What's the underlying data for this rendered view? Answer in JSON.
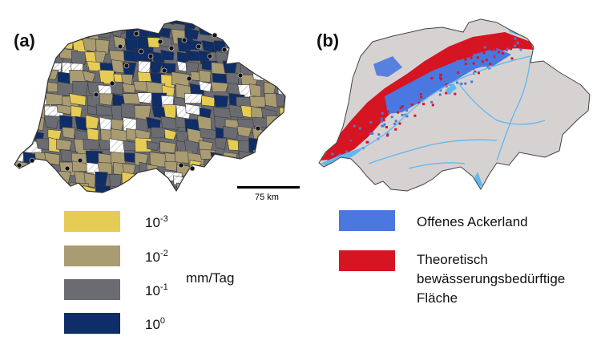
{
  "panel_a": {
    "label": "(a)",
    "scale_label": "75 km",
    "legend_unit": "mm/Tag",
    "legend": [
      {
        "base": "10",
        "exp": "-3",
        "color": "#e6cc55"
      },
      {
        "base": "10",
        "exp": "-2",
        "color": "#a99b72"
      },
      {
        "base": "10",
        "exp": "-1",
        "color": "#6b6c72"
      },
      {
        "base": "10",
        "exp": "0",
        "color": "#0f2d66"
      }
    ]
  },
  "panel_b": {
    "label": "(b)",
    "legend": [
      {
        "text": "Offenes Ackerland",
        "color": "#4a78e0"
      },
      {
        "lines": [
          "Theoretisch",
          "bewässerungsbedürftige",
          "Fläche"
        ],
        "color": "#d61522"
      }
    ],
    "colors": {
      "land": "#d7d2d2",
      "water": "#5fb8ef"
    }
  }
}
